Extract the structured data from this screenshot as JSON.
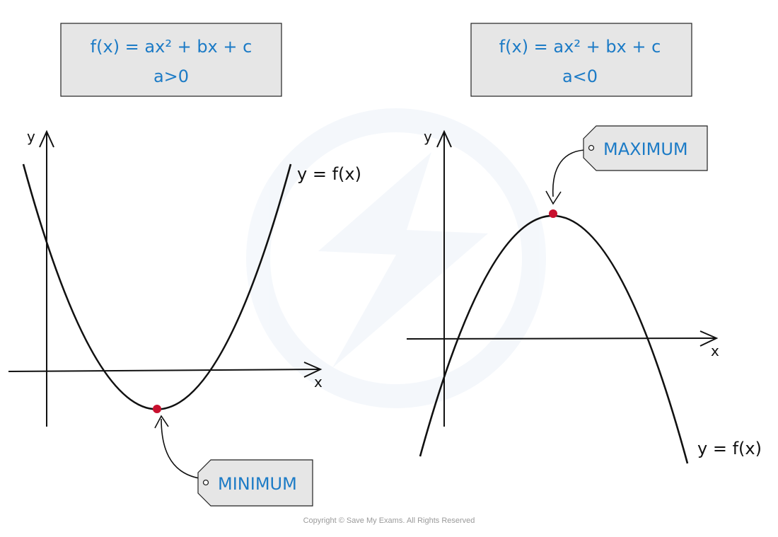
{
  "left_panel": {
    "formula": "f(x) = ax² + bx + c",
    "condition": "a>0",
    "curve_label": "y = f(x)",
    "x_axis_label": "x",
    "y_axis_label": "y",
    "point_label": "MINIMUM"
  },
  "right_panel": {
    "formula": "f(x) = ax² + bx + c",
    "condition": "a<0",
    "curve_label": "y = f(x)",
    "x_axis_label": "x",
    "y_axis_label": "y",
    "point_label": "MAXIMUM"
  },
  "footer": {
    "copyright": "Copyright © Save My Exams. All Rights Reserved"
  },
  "colors": {
    "accent_text": "#1c7bc6",
    "box_fill": "#e6e6e6",
    "point_color": "#c8102e",
    "watermark": "#eef3fa"
  }
}
